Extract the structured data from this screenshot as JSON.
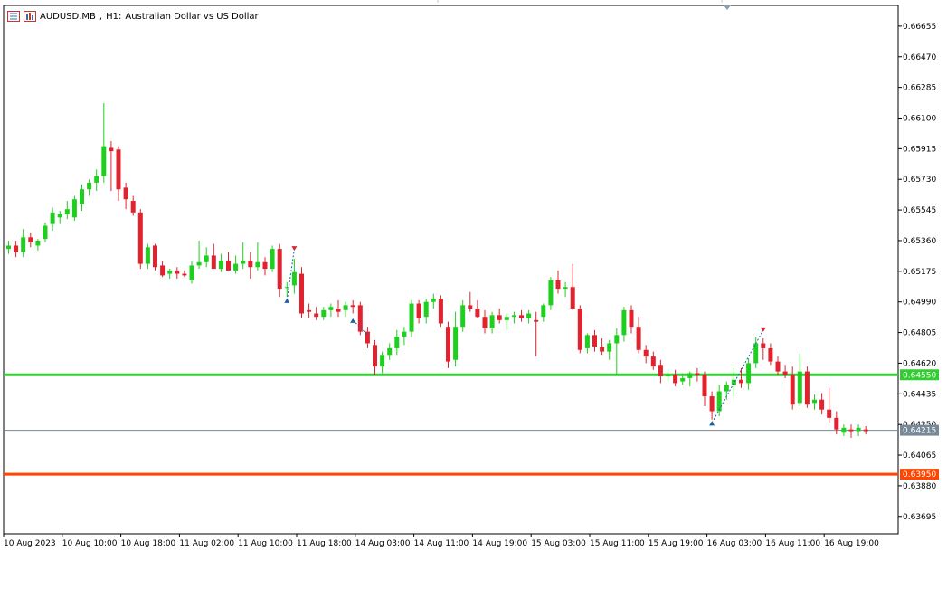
{
  "header": {
    "symbol": "AUDUSD.MB",
    "timeframe": "H1:",
    "description": "Australian Dollar vs US Dollar"
  },
  "colors": {
    "bull": "#1fcf1f",
    "bear": "#e0232e",
    "support_line": "#32cd32",
    "resistance_line": "#ff4500",
    "current_line": "#778899",
    "axis": "#000000",
    "buy_arrow": "#1e5fa8",
    "sell_arrow": "#e0232e"
  },
  "chart_data": {
    "type": "candlestick",
    "symbol": "AUDUSD.MB",
    "timeframe": "H1",
    "title": "AUDUSD.MB, H1:  Australian Dollar vs US Dollar",
    "ylim": [
      0.6359,
      0.6678
    ],
    "y_ticks": [
      "0.66655",
      "0.66470",
      "0.66285",
      "0.66100",
      "0.65915",
      "0.65730",
      "0.65545",
      "0.65360",
      "0.65175",
      "0.64990",
      "0.64805",
      "0.64620",
      "0.64435",
      "0.64250",
      "0.64065",
      "0.63880",
      "0.63695"
    ],
    "x_ticks": [
      "10 Aug 2023",
      "10 Aug 10:00",
      "10 Aug 18:00",
      "11 Aug 02:00",
      "11 Aug 10:00",
      "11 Aug 18:00",
      "14 Aug 03:00",
      "14 Aug 11:00",
      "14 Aug 19:00",
      "15 Aug 03:00",
      "15 Aug 11:00",
      "15 Aug 19:00",
      "16 Aug 03:00",
      "16 Aug 11:00",
      "16 Aug 19:00"
    ],
    "x_tick_index": [
      0,
      8,
      16,
      24,
      32,
      40,
      48,
      56,
      64,
      72,
      80,
      88,
      96,
      104,
      112
    ],
    "horizontal_lines": [
      {
        "price": 0.6455,
        "label": "0.64550",
        "color": "#32cd32",
        "width": 3
      },
      {
        "price": 0.64215,
        "label": "0.64215",
        "color": "#778899",
        "width": 1
      },
      {
        "price": 0.6395,
        "label": "0.63950",
        "color": "#ff4500",
        "width": 3
      }
    ],
    "candles": [
      {
        "o": 0.6531,
        "h": 0.6536,
        "l": 0.6528,
        "c": 0.6533
      },
      {
        "o": 0.6533,
        "h": 0.6536,
        "l": 0.6526,
        "c": 0.6529
      },
      {
        "o": 0.6529,
        "h": 0.6543,
        "l": 0.6526,
        "c": 0.6538
      },
      {
        "o": 0.6538,
        "h": 0.6541,
        "l": 0.6532,
        "c": 0.6535
      },
      {
        "o": 0.6533,
        "h": 0.6537,
        "l": 0.653,
        "c": 0.6536
      },
      {
        "o": 0.6537,
        "h": 0.6547,
        "l": 0.6535,
        "c": 0.6545
      },
      {
        "o": 0.6546,
        "h": 0.6556,
        "l": 0.6542,
        "c": 0.6553
      },
      {
        "o": 0.655,
        "h": 0.6554,
        "l": 0.6546,
        "c": 0.6552
      },
      {
        "o": 0.6552,
        "h": 0.656,
        "l": 0.6549,
        "c": 0.6555
      },
      {
        "o": 0.655,
        "h": 0.6563,
        "l": 0.6548,
        "c": 0.6561
      },
      {
        "o": 0.6558,
        "h": 0.657,
        "l": 0.6554,
        "c": 0.6567
      },
      {
        "o": 0.6567,
        "h": 0.6573,
        "l": 0.6563,
        "c": 0.6571
      },
      {
        "o": 0.6571,
        "h": 0.6579,
        "l": 0.6566,
        "c": 0.6575
      },
      {
        "o": 0.6575,
        "h": 0.6619,
        "l": 0.6571,
        "c": 0.6593
      },
      {
        "o": 0.6592,
        "h": 0.6596,
        "l": 0.6566,
        "c": 0.659
      },
      {
        "o": 0.6591,
        "h": 0.6593,
        "l": 0.656,
        "c": 0.6567
      },
      {
        "o": 0.6568,
        "h": 0.6571,
        "l": 0.6555,
        "c": 0.6561
      },
      {
        "o": 0.656,
        "h": 0.6563,
        "l": 0.6551,
        "c": 0.6553
      },
      {
        "o": 0.6553,
        "h": 0.6555,
        "l": 0.6519,
        "c": 0.6522
      },
      {
        "o": 0.6522,
        "h": 0.6534,
        "l": 0.6519,
        "c": 0.6532
      },
      {
        "o": 0.6533,
        "h": 0.6534,
        "l": 0.6518,
        "c": 0.652
      },
      {
        "o": 0.6521,
        "h": 0.6524,
        "l": 0.6514,
        "c": 0.6515
      },
      {
        "o": 0.6516,
        "h": 0.6519,
        "l": 0.6513,
        "c": 0.6518
      },
      {
        "o": 0.6518,
        "h": 0.652,
        "l": 0.6513,
        "c": 0.6516
      },
      {
        "o": 0.6516,
        "h": 0.6518,
        "l": 0.6514,
        "c": 0.6515
      },
      {
        "o": 0.6512,
        "h": 0.6524,
        "l": 0.651,
        "c": 0.6521
      },
      {
        "o": 0.6521,
        "h": 0.6536,
        "l": 0.6519,
        "c": 0.6523
      },
      {
        "o": 0.6523,
        "h": 0.6532,
        "l": 0.652,
        "c": 0.6527
      },
      {
        "o": 0.6527,
        "h": 0.6534,
        "l": 0.6521,
        "c": 0.6519
      },
      {
        "o": 0.6519,
        "h": 0.6528,
        "l": 0.6517,
        "c": 0.6524
      },
      {
        "o": 0.6524,
        "h": 0.6529,
        "l": 0.6519,
        "c": 0.6518
      },
      {
        "o": 0.6518,
        "h": 0.6527,
        "l": 0.6516,
        "c": 0.6522
      },
      {
        "o": 0.6522,
        "h": 0.6535,
        "l": 0.6519,
        "c": 0.6524
      },
      {
        "o": 0.6524,
        "h": 0.6529,
        "l": 0.6513,
        "c": 0.652
      },
      {
        "o": 0.652,
        "h": 0.6535,
        "l": 0.6518,
        "c": 0.6523
      },
      {
        "o": 0.6523,
        "h": 0.6526,
        "l": 0.6515,
        "c": 0.6519
      },
      {
        "o": 0.6519,
        "h": 0.6533,
        "l": 0.6517,
        "c": 0.6531
      },
      {
        "o": 0.6531,
        "h": 0.6534,
        "l": 0.6502,
        "c": 0.6507
      },
      {
        "o": 0.6508,
        "h": 0.6511,
        "l": 0.6502,
        "c": 0.6508
      },
      {
        "o": 0.6509,
        "h": 0.6525,
        "l": 0.6504,
        "c": 0.6517
      },
      {
        "o": 0.6516,
        "h": 0.652,
        "l": 0.6489,
        "c": 0.6492
      },
      {
        "o": 0.6494,
        "h": 0.6498,
        "l": 0.6489,
        "c": 0.6493
      },
      {
        "o": 0.6492,
        "h": 0.6496,
        "l": 0.6488,
        "c": 0.649
      },
      {
        "o": 0.649,
        "h": 0.6496,
        "l": 0.6488,
        "c": 0.6494
      },
      {
        "o": 0.6494,
        "h": 0.6498,
        "l": 0.649,
        "c": 0.6496
      },
      {
        "o": 0.6495,
        "h": 0.65,
        "l": 0.649,
        "c": 0.6493
      },
      {
        "o": 0.6494,
        "h": 0.6499,
        "l": 0.649,
        "c": 0.6497
      },
      {
        "o": 0.6497,
        "h": 0.65,
        "l": 0.6492,
        "c": 0.6496
      },
      {
        "o": 0.6497,
        "h": 0.6499,
        "l": 0.6479,
        "c": 0.6481
      },
      {
        "o": 0.6481,
        "h": 0.6484,
        "l": 0.6471,
        "c": 0.6474
      },
      {
        "o": 0.6473,
        "h": 0.6476,
        "l": 0.6455,
        "c": 0.646
      },
      {
        "o": 0.646,
        "h": 0.6469,
        "l": 0.6456,
        "c": 0.6467
      },
      {
        "o": 0.6467,
        "h": 0.6474,
        "l": 0.6464,
        "c": 0.6471
      },
      {
        "o": 0.6471,
        "h": 0.6482,
        "l": 0.6467,
        "c": 0.6478
      },
      {
        "o": 0.6478,
        "h": 0.6484,
        "l": 0.6473,
        "c": 0.6481
      },
      {
        "o": 0.6481,
        "h": 0.65,
        "l": 0.6478,
        "c": 0.6498
      },
      {
        "o": 0.6498,
        "h": 0.65,
        "l": 0.6486,
        "c": 0.6489
      },
      {
        "o": 0.649,
        "h": 0.6501,
        "l": 0.6486,
        "c": 0.6499
      },
      {
        "o": 0.6499,
        "h": 0.6504,
        "l": 0.6495,
        "c": 0.6501
      },
      {
        "o": 0.6501,
        "h": 0.6503,
        "l": 0.6484,
        "c": 0.6486
      },
      {
        "o": 0.6484,
        "h": 0.6487,
        "l": 0.6459,
        "c": 0.6463
      },
      {
        "o": 0.6464,
        "h": 0.6493,
        "l": 0.646,
        "c": 0.6484
      },
      {
        "o": 0.6484,
        "h": 0.65,
        "l": 0.6481,
        "c": 0.6497
      },
      {
        "o": 0.6497,
        "h": 0.6505,
        "l": 0.6493,
        "c": 0.6495
      },
      {
        "o": 0.6495,
        "h": 0.65,
        "l": 0.6489,
        "c": 0.649
      },
      {
        "o": 0.649,
        "h": 0.6494,
        "l": 0.648,
        "c": 0.6483
      },
      {
        "o": 0.6483,
        "h": 0.6493,
        "l": 0.648,
        "c": 0.6491
      },
      {
        "o": 0.6491,
        "h": 0.6495,
        "l": 0.6486,
        "c": 0.6488
      },
      {
        "o": 0.6488,
        "h": 0.6492,
        "l": 0.6482,
        "c": 0.649
      },
      {
        "o": 0.649,
        "h": 0.6493,
        "l": 0.6486,
        "c": 0.6491
      },
      {
        "o": 0.6491,
        "h": 0.6494,
        "l": 0.6487,
        "c": 0.6489
      },
      {
        "o": 0.6489,
        "h": 0.6494,
        "l": 0.6486,
        "c": 0.6492
      },
      {
        "o": 0.6488,
        "h": 0.6493,
        "l": 0.6466,
        "c": 0.6487
      },
      {
        "o": 0.649,
        "h": 0.6498,
        "l": 0.6487,
        "c": 0.6497
      },
      {
        "o": 0.6497,
        "h": 0.6514,
        "l": 0.6494,
        "c": 0.6512
      },
      {
        "o": 0.6512,
        "h": 0.6518,
        "l": 0.6504,
        "c": 0.6507
      },
      {
        "o": 0.6507,
        "h": 0.6511,
        "l": 0.6502,
        "c": 0.6508
      },
      {
        "o": 0.6508,
        "h": 0.6522,
        "l": 0.6494,
        "c": 0.6495
      },
      {
        "o": 0.6495,
        "h": 0.6497,
        "l": 0.6468,
        "c": 0.647
      },
      {
        "o": 0.6471,
        "h": 0.648,
        "l": 0.6468,
        "c": 0.6479
      },
      {
        "o": 0.6479,
        "h": 0.6482,
        "l": 0.6469,
        "c": 0.6472
      },
      {
        "o": 0.6472,
        "h": 0.6477,
        "l": 0.6467,
        "c": 0.6469
      },
      {
        "o": 0.6469,
        "h": 0.6476,
        "l": 0.6464,
        "c": 0.6474
      },
      {
        "o": 0.6474,
        "h": 0.6483,
        "l": 0.6455,
        "c": 0.6479
      },
      {
        "o": 0.6479,
        "h": 0.6496,
        "l": 0.6475,
        "c": 0.6494
      },
      {
        "o": 0.6494,
        "h": 0.6497,
        "l": 0.648,
        "c": 0.6484
      },
      {
        "o": 0.6484,
        "h": 0.649,
        "l": 0.6468,
        "c": 0.647
      },
      {
        "o": 0.647,
        "h": 0.6473,
        "l": 0.6462,
        "c": 0.6466
      },
      {
        "o": 0.6466,
        "h": 0.6469,
        "l": 0.6458,
        "c": 0.646
      },
      {
        "o": 0.6461,
        "h": 0.6464,
        "l": 0.645,
        "c": 0.6454
      },
      {
        "o": 0.6454,
        "h": 0.6458,
        "l": 0.6451,
        "c": 0.6455
      },
      {
        "o": 0.6455,
        "h": 0.6458,
        "l": 0.6448,
        "c": 0.645
      },
      {
        "o": 0.6451,
        "h": 0.6456,
        "l": 0.6449,
        "c": 0.6453
      },
      {
        "o": 0.6453,
        "h": 0.6457,
        "l": 0.6448,
        "c": 0.6456
      },
      {
        "o": 0.6456,
        "h": 0.6459,
        "l": 0.6451,
        "c": 0.6455
      },
      {
        "o": 0.6455,
        "h": 0.6457,
        "l": 0.6436,
        "c": 0.6442
      },
      {
        "o": 0.6442,
        "h": 0.6445,
        "l": 0.6428,
        "c": 0.6433
      },
      {
        "o": 0.6433,
        "h": 0.6449,
        "l": 0.643,
        "c": 0.6445
      },
      {
        "o": 0.6445,
        "h": 0.6451,
        "l": 0.644,
        "c": 0.6449
      },
      {
        "o": 0.6449,
        "h": 0.6459,
        "l": 0.6442,
        "c": 0.6452
      },
      {
        "o": 0.6452,
        "h": 0.6459,
        "l": 0.6447,
        "c": 0.645
      },
      {
        "o": 0.645,
        "h": 0.6465,
        "l": 0.6446,
        "c": 0.6462
      },
      {
        "o": 0.6462,
        "h": 0.6478,
        "l": 0.6459,
        "c": 0.6474
      },
      {
        "o": 0.6474,
        "h": 0.6477,
        "l": 0.6464,
        "c": 0.6471
      },
      {
        "o": 0.6471,
        "h": 0.6474,
        "l": 0.6461,
        "c": 0.6463
      },
      {
        "o": 0.6463,
        "h": 0.6466,
        "l": 0.6455,
        "c": 0.6457
      },
      {
        "o": 0.6457,
        "h": 0.6461,
        "l": 0.6453,
        "c": 0.6455
      },
      {
        "o": 0.6455,
        "h": 0.646,
        "l": 0.6434,
        "c": 0.6437
      },
      {
        "o": 0.6438,
        "h": 0.6468,
        "l": 0.6436,
        "c": 0.6457
      },
      {
        "o": 0.6457,
        "h": 0.646,
        "l": 0.6435,
        "c": 0.6437
      },
      {
        "o": 0.6438,
        "h": 0.6443,
        "l": 0.6434,
        "c": 0.644
      },
      {
        "o": 0.644,
        "h": 0.6444,
        "l": 0.6431,
        "c": 0.6434
      },
      {
        "o": 0.6434,
        "h": 0.6447,
        "l": 0.6426,
        "c": 0.6429
      },
      {
        "o": 0.6429,
        "h": 0.6433,
        "l": 0.6419,
        "c": 0.6422
      },
      {
        "o": 0.642,
        "h": 0.6425,
        "l": 0.6418,
        "c": 0.6423
      },
      {
        "o": 0.6422,
        "h": 0.6425,
        "l": 0.6417,
        "c": 0.6421
      },
      {
        "o": 0.6421,
        "h": 0.6425,
        "l": 0.6418,
        "c": 0.6423
      },
      {
        "o": 0.6422,
        "h": 0.6424,
        "l": 0.6419,
        "c": 0.6421
      }
    ],
    "signals": [
      {
        "index": 38,
        "type": "buy",
        "price": 0.65
      },
      {
        "index": 39,
        "type": "sell",
        "price": 0.6531
      },
      {
        "index": 47,
        "type": "buy",
        "price": 0.6488
      },
      {
        "index": 49,
        "type": "sell",
        "price": 0.6479
      },
      {
        "index": 96,
        "type": "buy",
        "price": 0.6426
      },
      {
        "index": 103,
        "type": "sell",
        "price": 0.6482
      }
    ]
  }
}
